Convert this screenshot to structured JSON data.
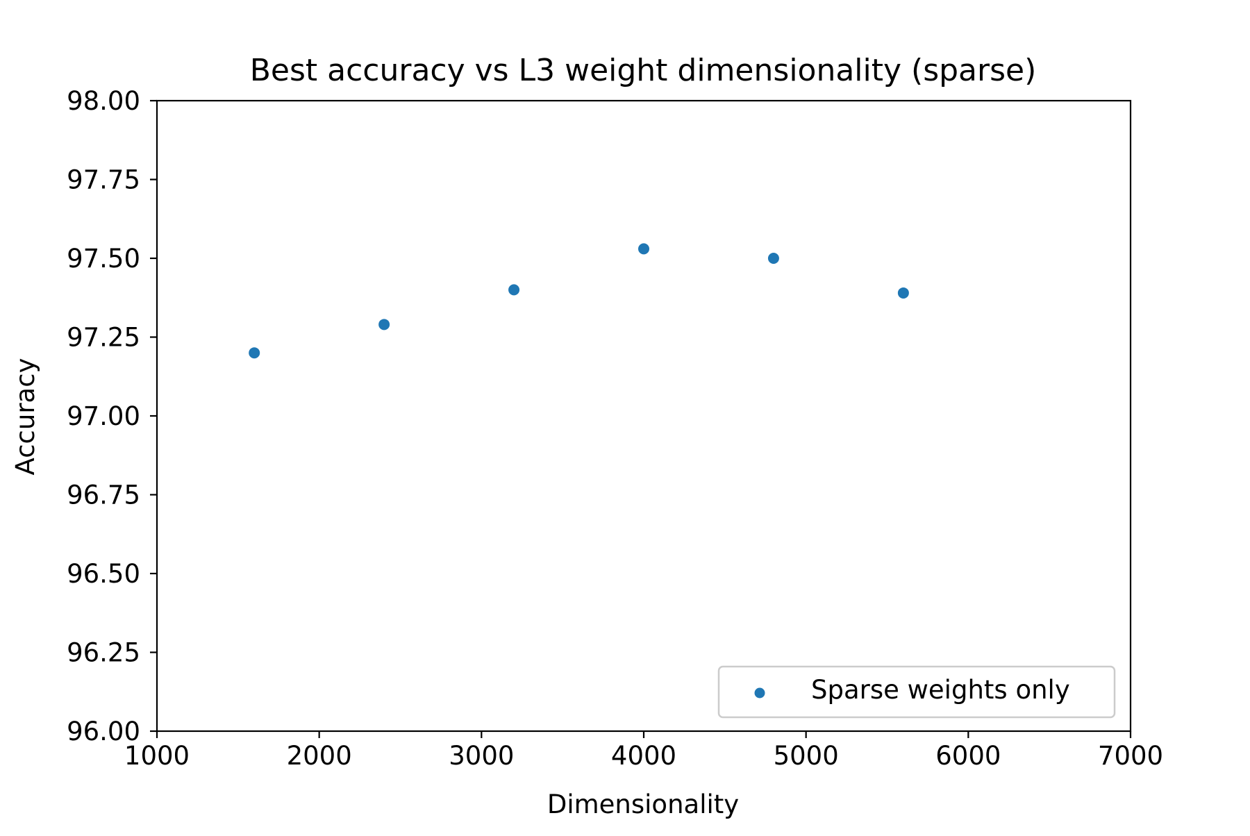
{
  "chart_data": {
    "type": "scatter",
    "title": "Best accuracy vs L3 weight dimensionality  (sparse)",
    "xlabel": "Dimensionality",
    "ylabel": "Accuracy",
    "xlim": [
      1000,
      7000
    ],
    "ylim": [
      96.0,
      98.0
    ],
    "xticks": [
      1000,
      2000,
      3000,
      4000,
      5000,
      6000,
      7000
    ],
    "xtick_labels": [
      "1000",
      "2000",
      "3000",
      "4000",
      "5000",
      "6000",
      "7000"
    ],
    "yticks": [
      96.0,
      96.25,
      96.5,
      96.75,
      97.0,
      97.25,
      97.5,
      97.75,
      98.0
    ],
    "ytick_labels": [
      "96.00",
      "96.25",
      "96.50",
      "96.75",
      "97.00",
      "97.25",
      "97.50",
      "97.75",
      "98.00"
    ],
    "grid": false,
    "legend_position": "lower right",
    "series": [
      {
        "name": "Sparse weights only",
        "color": "#1f77b4",
        "x": [
          1600,
          2400,
          3200,
          4000,
          4800,
          5600
        ],
        "y": [
          97.2,
          97.29,
          97.4,
          97.53,
          97.5,
          97.39
        ]
      }
    ]
  }
}
